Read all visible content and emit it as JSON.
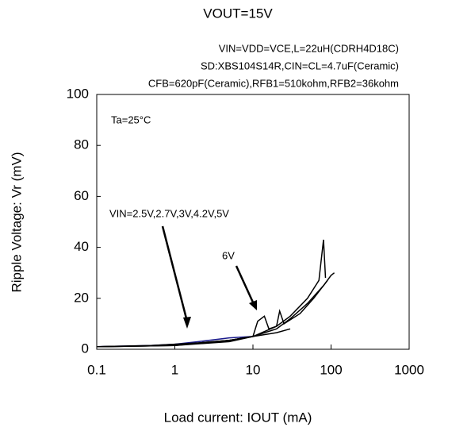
{
  "chart_data": {
    "type": "line",
    "title": "VOUT=15V",
    "subtitle": [
      "VIN=VDD=VCE,L=22uH(CDRH4D18C)",
      "SD:XBS104S14R,CIN=CL=4.7uF(Ceramic)",
      "CFB=620pF(Ceramic),RFB1=510kohm,RFB2=36kohm"
    ],
    "annotations": [
      "Ta=25°C",
      "VIN=2.5V,2.7V,3V,4.2V,5V",
      "6V"
    ],
    "xlabel": "Load current: IOUT (mA)",
    "ylabel": "Ripple Voltage: Vr (mV)",
    "xlog": true,
    "xlim": [
      0.1,
      1000
    ],
    "xticks": [
      0.1,
      1,
      10,
      100,
      1000
    ],
    "ylim": [
      0,
      100
    ],
    "yticks": [
      0,
      20,
      40,
      60,
      80,
      100
    ],
    "grid": false,
    "series": [
      {
        "color": "#1a1a8c",
        "x": [
          0.1,
          0.5,
          1,
          2,
          5,
          10
        ],
        "values": [
          1,
          1.5,
          2,
          3,
          4.5,
          5
        ]
      },
      {
        "color": "#000000",
        "x": [
          0.1,
          0.5,
          1,
          2,
          5,
          10,
          20,
          30
        ],
        "values": [
          1,
          1.3,
          1.8,
          2.5,
          3.5,
          5,
          6.5,
          8
        ]
      },
      {
        "color": "#000000",
        "x": [
          0.1,
          0.5,
          1,
          2,
          5,
          10,
          20,
          30,
          50,
          80,
          100,
          110
        ],
        "values": [
          1,
          1.5,
          2,
          2.5,
          3.5,
          5,
          8,
          12,
          18,
          25,
          29,
          30
        ]
      },
      {
        "color": "#000000",
        "x": [
          0.1,
          1,
          5,
          10,
          20,
          30,
          50,
          70,
          80,
          85
        ],
        "values": [
          1,
          1.5,
          3,
          5,
          9,
          13,
          20,
          27,
          43,
          28
        ]
      },
      {
        "color": "#000000",
        "x": [
          0.1,
          1,
          5,
          10,
          11.5,
          14,
          16,
          20,
          22,
          25,
          40,
          60,
          90
        ],
        "values": [
          1,
          1.5,
          3.5,
          5,
          11,
          13,
          8,
          9,
          15,
          10,
          14,
          20,
          27
        ]
      }
    ]
  }
}
